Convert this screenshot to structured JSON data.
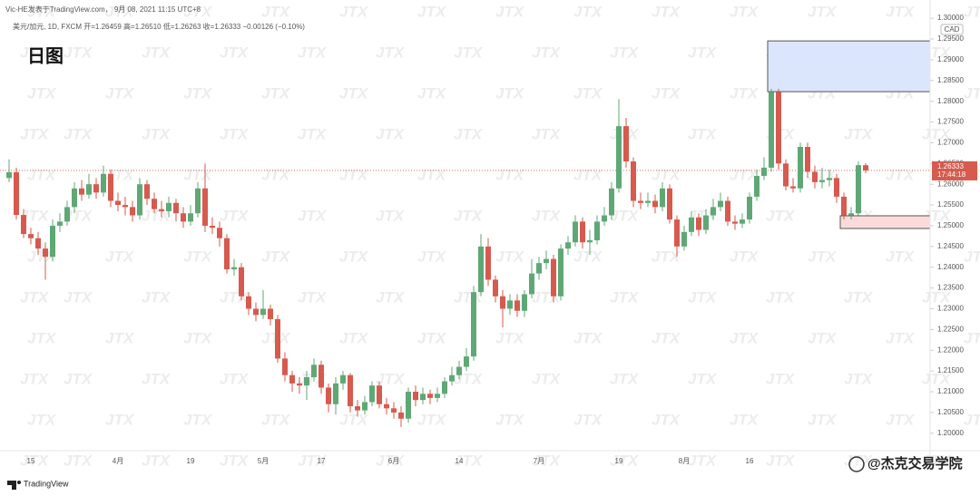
{
  "chart_data": {
    "type": "candlestick",
    "title": "Vic-HE发表于TradingView.com， 9月 08, 2021 11:15 UTC+8",
    "subtitle": "美元/加元, 1D, FXCM  开=1.26459 高=1.26510 低=1.26263 收=1.26333 −0.00126 (−0.10%)",
    "annotation": "日图",
    "currency": "CAD",
    "platform": "TradingView",
    "credit": "@杰克交易学院",
    "watermark": "JTX",
    "up_color": "#5fa875",
    "down_color": "#d65a4e",
    "last_price": 1.26333,
    "countdown": "17:44:18",
    "ylim": [
      1.1958,
      1.3044
    ],
    "yticks": [
      {
        "value": 1.2,
        "label": "1.20000"
      },
      {
        "value": 1.205,
        "label": "1.20500"
      },
      {
        "value": 1.21,
        "label": "1.21000"
      },
      {
        "value": 1.215,
        "label": "1.21500"
      },
      {
        "value": 1.22,
        "label": "1.22000"
      },
      {
        "value": 1.225,
        "label": "1.22500"
      },
      {
        "value": 1.23,
        "label": "1.23000"
      },
      {
        "value": 1.235,
        "label": "1.23500"
      },
      {
        "value": 1.24,
        "label": "1.24000"
      },
      {
        "value": 1.245,
        "label": "1.24500"
      },
      {
        "value": 1.25,
        "label": "1.25000"
      },
      {
        "value": 1.255,
        "label": "1.25500"
      },
      {
        "value": 1.26,
        "label": "1.26000"
      },
      {
        "value": 1.265,
        "label": "1.26500"
      },
      {
        "value": 1.27,
        "label": "1.27000"
      },
      {
        "value": 1.275,
        "label": "1.27500"
      },
      {
        "value": 1.28,
        "label": "1.28000"
      },
      {
        "value": 1.285,
        "label": "1.28500"
      },
      {
        "value": 1.29,
        "label": "1.29000"
      },
      {
        "value": 1.295,
        "label": "1.29500"
      },
      {
        "value": 1.3,
        "label": "1.30000"
      }
    ],
    "zones": [
      {
        "start": 105,
        "top": 1.29454,
        "bottom": 1.28231,
        "color": "#dbe5fb"
      },
      {
        "start": 115,
        "top": 1.2524,
        "bottom": 1.24934,
        "color": "#fbdada"
      }
    ],
    "x": [
      null,
      null,
      null,
      "15",
      null,
      null,
      null,
      null,
      null,
      null,
      null,
      null,
      null,
      null,
      null,
      "4月",
      null,
      null,
      null,
      null,
      null,
      null,
      null,
      null,
      null,
      "19",
      null,
      null,
      null,
      null,
      null,
      null,
      null,
      null,
      null,
      "5月",
      null,
      null,
      null,
      null,
      null,
      null,
      null,
      "17",
      null,
      null,
      null,
      null,
      null,
      null,
      null,
      null,
      null,
      "6月",
      null,
      null,
      null,
      null,
      null,
      null,
      null,
      null,
      "14",
      null,
      null,
      null,
      null,
      null,
      null,
      null,
      null,
      null,
      null,
      "7月",
      null,
      null,
      null,
      null,
      null,
      null,
      null,
      null,
      null,
      null,
      "19",
      null,
      null,
      null,
      null,
      null,
      null,
      null,
      null,
      "8月",
      null,
      null,
      null,
      null,
      null,
      null,
      null,
      null,
      "16",
      null,
      null,
      null,
      null,
      null,
      null,
      null,
      null,
      null,
      null,
      null,
      null,
      null,
      null,
      null,
      null
    ],
    "open": [
      1.2615,
      1.2629,
      1.2526,
      1.248,
      1.247,
      1.2445,
      1.2425,
      1.25,
      1.251,
      1.2545,
      1.259,
      1.2575,
      1.26,
      1.258,
      1.2625,
      1.256,
      1.255,
      1.2545,
      1.2525,
      1.26,
      1.2565,
      1.254,
      1.2535,
      1.2555,
      1.253,
      1.251,
      1.253,
      1.259,
      1.25,
      1.2495,
      1.247,
      1.2395,
      1.24,
      1.233,
      1.23,
      1.2285,
      1.23,
      1.2275,
      1.218,
      1.214,
      1.212,
      1.2115,
      1.2135,
      1.2165,
      1.211,
      1.207,
      1.212,
      1.214,
      1.2065,
      1.2055,
      1.2075,
      1.2115,
      1.207,
      1.206,
      1.205,
      1.2035,
      1.21,
      1.208,
      1.2095,
      1.2085,
      1.2095,
      1.2125,
      1.214,
      1.216,
      1.2185,
      1.234,
      1.245,
      1.237,
      1.233,
      1.23,
      1.232,
      1.2295,
      1.2335,
      1.2385,
      1.241,
      1.242,
      1.233,
      1.2445,
      1.246,
      1.251,
      1.246,
      1.2465,
      1.251,
      1.2525,
      1.259,
      1.274,
      1.2655,
      1.256,
      1.2555,
      1.256,
      1.2545,
      1.259,
      1.2515,
      1.245,
      1.2485,
      1.252,
      1.249,
      1.2525,
      1.2545,
      1.256,
      1.251,
      1.2505,
      1.2515,
      1.257,
      1.262,
      1.264,
      1.2822,
      1.265,
      1.2595,
      1.259,
      1.269,
      1.263,
      1.2605,
      1.261,
      1.2615,
      1.257,
      1.2525,
      1.253,
      1.26459
    ],
    "high": [
      1.266,
      1.264,
      1.254,
      1.2495,
      1.2485,
      1.246,
      1.2515,
      1.253,
      1.256,
      1.2605,
      1.261,
      1.2625,
      1.2615,
      1.2645,
      1.2635,
      1.258,
      1.257,
      1.256,
      1.2615,
      1.261,
      1.258,
      1.256,
      1.257,
      1.2565,
      1.2545,
      1.255,
      1.2605,
      1.265,
      1.252,
      1.251,
      1.248,
      1.242,
      1.241,
      1.234,
      1.2315,
      1.2345,
      1.231,
      1.2285,
      1.2195,
      1.215,
      1.2135,
      1.215,
      1.218,
      1.2175,
      1.212,
      1.2135,
      1.215,
      1.2145,
      1.208,
      1.209,
      1.2125,
      1.2125,
      1.2085,
      1.2075,
      1.2065,
      1.211,
      1.2115,
      1.211,
      1.2105,
      1.211,
      1.2135,
      1.216,
      1.2175,
      1.2205,
      1.2355,
      1.248,
      1.247,
      1.238,
      1.2345,
      1.2335,
      1.2335,
      1.2345,
      1.242,
      1.2425,
      1.244,
      1.243,
      1.2455,
      1.2475,
      1.2525,
      1.252,
      1.249,
      1.2525,
      1.2545,
      1.2605,
      1.2805,
      1.276,
      1.2665,
      1.258,
      1.258,
      1.2575,
      1.2605,
      1.26,
      1.2525,
      1.25,
      1.2535,
      1.253,
      1.254,
      1.2565,
      1.258,
      1.257,
      1.2525,
      1.253,
      1.258,
      1.2635,
      1.2665,
      1.283,
      1.283,
      1.266,
      1.2615,
      1.27,
      1.27,
      1.2645,
      1.264,
      1.2635,
      1.2625,
      1.258,
      1.2545,
      1.2655,
      1.2651
    ],
    "low": [
      1.2605,
      1.2515,
      1.247,
      1.2455,
      1.243,
      1.237,
      1.2415,
      1.2485,
      1.25,
      1.253,
      1.256,
      1.2565,
      1.2565,
      1.257,
      1.2545,
      1.2535,
      1.2525,
      1.251,
      1.2515,
      1.255,
      1.253,
      1.252,
      1.252,
      1.251,
      1.2495,
      1.25,
      1.252,
      1.2485,
      1.248,
      1.245,
      1.2385,
      1.238,
      1.232,
      1.2285,
      1.227,
      1.2275,
      1.226,
      1.217,
      1.2125,
      1.21,
      1.2095,
      1.208,
      1.2125,
      1.2095,
      1.205,
      1.2045,
      1.2105,
      1.205,
      1.204,
      1.2045,
      1.2065,
      1.206,
      1.2045,
      1.2035,
      1.2015,
      1.2025,
      1.2065,
      1.207,
      1.207,
      1.2075,
      1.2085,
      1.2115,
      1.213,
      1.215,
      1.2175,
      1.233,
      1.2355,
      1.2315,
      1.2255,
      1.2285,
      1.228,
      1.228,
      1.2325,
      1.237,
      1.2395,
      1.2315,
      1.232,
      1.243,
      1.245,
      1.2445,
      1.243,
      1.2455,
      1.25,
      1.2515,
      1.258,
      1.264,
      1.2545,
      1.254,
      1.2545,
      1.253,
      1.2535,
      1.2505,
      1.2425,
      1.244,
      1.2475,
      1.2475,
      1.248,
      1.2515,
      1.2535,
      1.25,
      1.249,
      1.2495,
      1.2505,
      1.256,
      1.261,
      1.263,
      1.2635,
      1.2585,
      1.258,
      1.258,
      1.2615,
      1.259,
      1.259,
      1.2595,
      1.2555,
      1.2515,
      1.2515,
      1.2525,
      1.26263
    ],
    "close": [
      1.2629,
      1.2526,
      1.248,
      1.247,
      1.2445,
      1.2425,
      1.25,
      1.251,
      1.2545,
      1.259,
      1.2575,
      1.26,
      1.258,
      1.2625,
      1.256,
      1.255,
      1.2545,
      1.2525,
      1.26,
      1.2565,
      1.254,
      1.2535,
      1.2555,
      1.253,
      1.251,
      1.253,
      1.259,
      1.25,
      1.2495,
      1.247,
      1.2395,
      1.24,
      1.233,
      1.23,
      1.2285,
      1.23,
      1.2275,
      1.218,
      1.214,
      1.212,
      1.2115,
      1.2135,
      1.2165,
      1.211,
      1.207,
      1.212,
      1.214,
      1.2065,
      1.2055,
      1.2075,
      1.2115,
      1.207,
      1.206,
      1.205,
      1.2035,
      1.21,
      1.208,
      1.2095,
      1.2085,
      1.2095,
      1.2125,
      1.214,
      1.216,
      1.2185,
      1.234,
      1.245,
      1.237,
      1.233,
      1.23,
      1.232,
      1.2295,
      1.2335,
      1.2385,
      1.241,
      1.242,
      1.233,
      1.2445,
      1.246,
      1.251,
      1.246,
      1.2465,
      1.251,
      1.2525,
      1.259,
      1.274,
      1.2655,
      1.256,
      1.2555,
      1.256,
      1.2545,
      1.259,
      1.2515,
      1.245,
      1.2485,
      1.252,
      1.249,
      1.2525,
      1.2545,
      1.256,
      1.251,
      1.2505,
      1.2515,
      1.257,
      1.262,
      1.264,
      1.2822,
      1.265,
      1.2595,
      1.259,
      1.269,
      1.263,
      1.2605,
      1.261,
      1.2615,
      1.257,
      1.2525,
      1.253,
      1.2646,
      1.26333
    ]
  }
}
